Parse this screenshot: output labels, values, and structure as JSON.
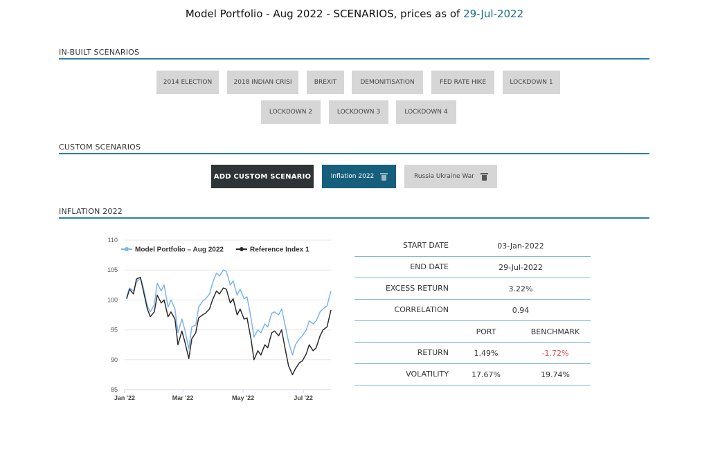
{
  "header": {
    "title_prefix": "Model Portfolio - Aug 2022 - SCENARIOS, prices as of ",
    "title_date": "29-Jul-2022"
  },
  "inbuilt": {
    "heading": "IN-BUILT SCENARIOS",
    "buttons": [
      "2014 ELECTION",
      "2018 INDIAN CRISI",
      "BREXIT",
      "DEMONITISATION",
      "FED RATE HIKE",
      "LOCKDOWN 1",
      "LOCKDOWN 2",
      "LOCKDOWN 3",
      "LOCKDOWN 4"
    ]
  },
  "custom": {
    "heading": "CUSTOM SCENARIOS",
    "add_label": "ADD CUSTOM SCENARIO",
    "scenarios": [
      "Inflation 2022",
      "Russia Ukraine War"
    ]
  },
  "selected": {
    "heading": "INFLATION 2022"
  },
  "stats": {
    "start_label": "START DATE",
    "start_value": "03-Jan-2022",
    "end_label": "END DATE",
    "end_value": "29-Jul-2022",
    "excess_label": "EXCESS RETURN",
    "excess_value": "3.22%",
    "corr_label": "CORRELATION",
    "corr_value": "0.94",
    "col_port": "PORT",
    "col_bench": "BENCHMARK",
    "return_label": "RETURN",
    "return_port": "1.49%",
    "return_bench": "-1.72%",
    "vol_label": "VOLATILITY",
    "vol_port": "17.67%",
    "vol_bench": "19.74%"
  },
  "colors": {
    "accent": "#155f7d",
    "rule": "#2a7fa8",
    "negative": "#e04a4a",
    "series1": "#7cb5ec",
    "series2": "#2b2b2b"
  },
  "chart_data": {
    "type": "line",
    "ylim": [
      85,
      110
    ],
    "yticks": [
      85,
      90,
      95,
      100,
      105,
      110
    ],
    "xlim": [
      "2022-01-03",
      "2022-07-29"
    ],
    "xticks": [
      {
        "date": "2022-01-01",
        "label": "Jan '22"
      },
      {
        "date": "2022-03-01",
        "label": "Mar '22"
      },
      {
        "date": "2022-05-01",
        "label": "May '22"
      },
      {
        "date": "2022-07-01",
        "label": "Jul '22"
      }
    ],
    "legend_position": "top",
    "series": [
      {
        "name": "Model Portfolio – Aug 2022",
        "color": "#7cb5ec",
        "points": [
          [
            "2022-01-03",
            100.5
          ],
          [
            "2022-01-06",
            102.0
          ],
          [
            "2022-01-10",
            101.5
          ],
          [
            "2022-01-13",
            103.0
          ],
          [
            "2022-01-17",
            103.6
          ],
          [
            "2022-01-20",
            102.0
          ],
          [
            "2022-01-24",
            99.0
          ],
          [
            "2022-01-27",
            98.0
          ],
          [
            "2022-01-31",
            99.2
          ],
          [
            "2022-02-03",
            102.8
          ],
          [
            "2022-02-07",
            101.5
          ],
          [
            "2022-02-10",
            102.5
          ],
          [
            "2022-02-14",
            98.8
          ],
          [
            "2022-02-17",
            100.0
          ],
          [
            "2022-02-21",
            98.5
          ],
          [
            "2022-02-24",
            94.5
          ],
          [
            "2022-02-28",
            96.8
          ],
          [
            "2022-03-03",
            95.0
          ],
          [
            "2022-03-07",
            91.8
          ],
          [
            "2022-03-10",
            95.5
          ],
          [
            "2022-03-14",
            95.8
          ],
          [
            "2022-03-17",
            98.8
          ],
          [
            "2022-03-21",
            99.8
          ],
          [
            "2022-03-24",
            100.2
          ],
          [
            "2022-03-28",
            101.0
          ],
          [
            "2022-03-31",
            102.8
          ],
          [
            "2022-04-04",
            104.5
          ],
          [
            "2022-04-07",
            104.0
          ],
          [
            "2022-04-11",
            105.0
          ],
          [
            "2022-04-14",
            104.8
          ],
          [
            "2022-04-18",
            102.5
          ],
          [
            "2022-04-21",
            103.2
          ],
          [
            "2022-04-25",
            100.8
          ],
          [
            "2022-04-28",
            101.8
          ],
          [
            "2022-05-02",
            100.2
          ],
          [
            "2022-05-05",
            100.5
          ],
          [
            "2022-05-09",
            97.0
          ],
          [
            "2022-05-12",
            93.8
          ],
          [
            "2022-05-16",
            95.0
          ],
          [
            "2022-05-19",
            94.5
          ],
          [
            "2022-05-23",
            96.0
          ],
          [
            "2022-05-26",
            95.5
          ],
          [
            "2022-05-30",
            97.8
          ],
          [
            "2022-06-02",
            98.0
          ],
          [
            "2022-06-06",
            97.5
          ],
          [
            "2022-06-09",
            98.5
          ],
          [
            "2022-06-13",
            95.5
          ],
          [
            "2022-06-16",
            93.0
          ],
          [
            "2022-06-20",
            90.8
          ],
          [
            "2022-06-23",
            92.5
          ],
          [
            "2022-06-27",
            93.5
          ],
          [
            "2022-06-30",
            94.0
          ],
          [
            "2022-07-04",
            95.0
          ],
          [
            "2022-07-07",
            96.5
          ],
          [
            "2022-07-11",
            96.0
          ],
          [
            "2022-07-14",
            96.5
          ],
          [
            "2022-07-18",
            98.0
          ],
          [
            "2022-07-21",
            98.5
          ],
          [
            "2022-07-25",
            99.0
          ],
          [
            "2022-07-29",
            101.5
          ]
        ]
      },
      {
        "name": "Reference Index 1",
        "color": "#2b2b2b",
        "points": [
          [
            "2022-01-03",
            100.2
          ],
          [
            "2022-01-06",
            101.8
          ],
          [
            "2022-01-10",
            101.0
          ],
          [
            "2022-01-13",
            103.5
          ],
          [
            "2022-01-17",
            103.8
          ],
          [
            "2022-01-20",
            101.5
          ],
          [
            "2022-01-24",
            98.5
          ],
          [
            "2022-01-27",
            97.2
          ],
          [
            "2022-01-31",
            98.0
          ],
          [
            "2022-02-03",
            100.8
          ],
          [
            "2022-02-07",
            99.5
          ],
          [
            "2022-02-10",
            100.0
          ],
          [
            "2022-02-14",
            97.2
          ],
          [
            "2022-02-17",
            98.0
          ],
          [
            "2022-02-21",
            96.8
          ],
          [
            "2022-02-24",
            92.5
          ],
          [
            "2022-02-28",
            94.8
          ],
          [
            "2022-03-03",
            93.0
          ],
          [
            "2022-03-07",
            90.2
          ],
          [
            "2022-03-10",
            93.5
          ],
          [
            "2022-03-14",
            94.5
          ],
          [
            "2022-03-17",
            97.0
          ],
          [
            "2022-03-21",
            97.5
          ],
          [
            "2022-03-24",
            97.8
          ],
          [
            "2022-03-28",
            98.5
          ],
          [
            "2022-03-31",
            100.0
          ],
          [
            "2022-04-04",
            101.5
          ],
          [
            "2022-04-07",
            101.0
          ],
          [
            "2022-04-11",
            102.0
          ],
          [
            "2022-04-14",
            101.8
          ],
          [
            "2022-04-18",
            99.5
          ],
          [
            "2022-04-21",
            100.2
          ],
          [
            "2022-04-25",
            97.5
          ],
          [
            "2022-04-28",
            98.5
          ],
          [
            "2022-05-02",
            96.8
          ],
          [
            "2022-05-05",
            97.0
          ],
          [
            "2022-05-09",
            93.5
          ],
          [
            "2022-05-12",
            90.0
          ],
          [
            "2022-05-16",
            91.5
          ],
          [
            "2022-05-19",
            90.8
          ],
          [
            "2022-05-23",
            92.5
          ],
          [
            "2022-05-26",
            92.0
          ],
          [
            "2022-05-30",
            94.5
          ],
          [
            "2022-06-02",
            94.8
          ],
          [
            "2022-06-06",
            94.0
          ],
          [
            "2022-06-09",
            95.0
          ],
          [
            "2022-06-13",
            91.5
          ],
          [
            "2022-06-16",
            89.0
          ],
          [
            "2022-06-20",
            87.5
          ],
          [
            "2022-06-23",
            88.5
          ],
          [
            "2022-06-27",
            89.5
          ],
          [
            "2022-06-30",
            89.8
          ],
          [
            "2022-07-04",
            91.0
          ],
          [
            "2022-07-07",
            92.5
          ],
          [
            "2022-07-11",
            91.5
          ],
          [
            "2022-07-14",
            92.0
          ],
          [
            "2022-07-18",
            94.0
          ],
          [
            "2022-07-21",
            95.0
          ],
          [
            "2022-07-25",
            95.5
          ],
          [
            "2022-07-29",
            98.3
          ]
        ]
      }
    ]
  }
}
